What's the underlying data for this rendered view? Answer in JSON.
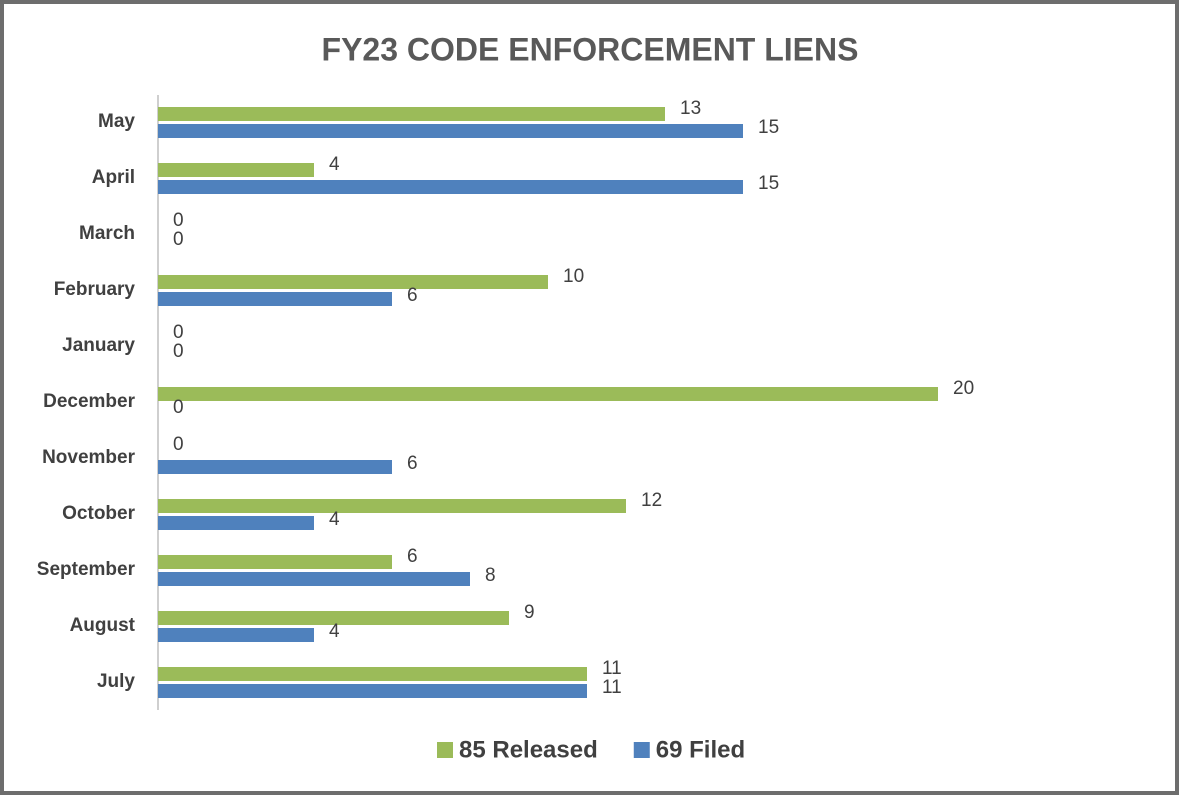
{
  "chart_data": {
    "type": "hbar",
    "title": "FY23 CODE ENFORCEMENT LIENS",
    "categories": [
      "May",
      "April",
      "March",
      "February",
      "January",
      "December",
      "November",
      "October",
      "September",
      "August",
      "July"
    ],
    "series": [
      {
        "name": "85 Released",
        "color": "#9bbb59",
        "values": [
          13,
          4,
          0,
          10,
          0,
          20,
          0,
          12,
          6,
          9,
          11
        ]
      },
      {
        "name": "69 Filed",
        "color": "#4f81bd",
        "values": [
          15,
          15,
          0,
          6,
          0,
          0,
          6,
          4,
          8,
          4,
          11
        ]
      }
    ],
    "xlim": [
      0,
      20
    ],
    "legend": "bottom"
  }
}
